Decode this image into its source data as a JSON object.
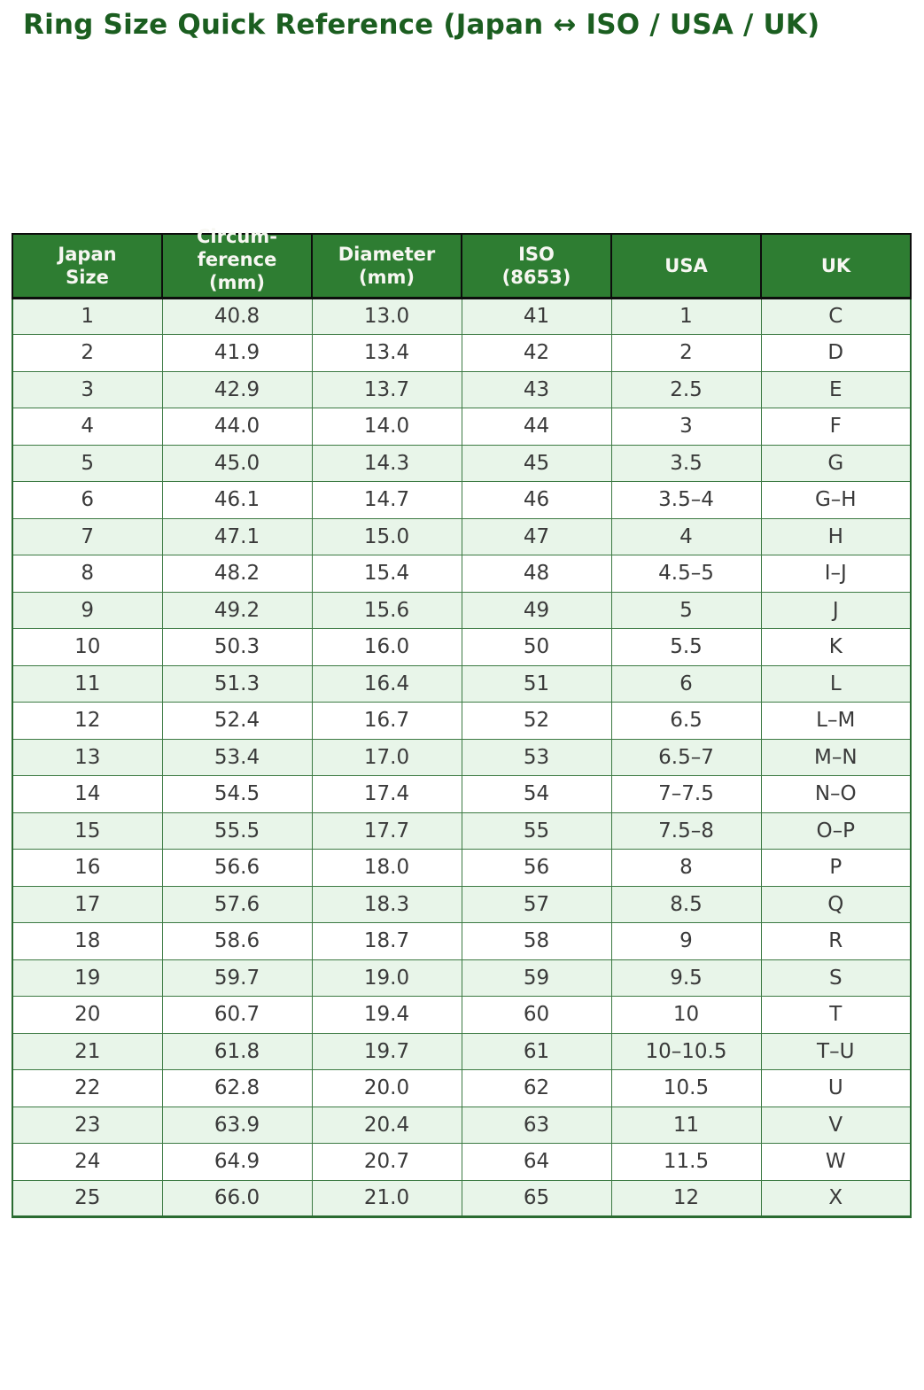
{
  "colors": {
    "title_green": "#1b5e20",
    "header_green": "#2e7d32",
    "stripe_green": "#e8f5e9",
    "body_text": "#3a3a3a",
    "header_text": "#f7f7f2"
  },
  "chart_data": {
    "type": "table",
    "title": "Ring Size Quick Reference (Japan ↔ ISO / USA / UK)",
    "columns": [
      "Japan\nSize",
      "Circum-\nference\n(mm)",
      "Diameter\n(mm)",
      "ISO\n(8653)",
      "USA",
      "UK"
    ],
    "rows": [
      [
        "1",
        "40.8",
        "13.0",
        "41",
        "1",
        "C"
      ],
      [
        "2",
        "41.9",
        "13.4",
        "42",
        "2",
        "D"
      ],
      [
        "3",
        "42.9",
        "13.7",
        "43",
        "2.5",
        "E"
      ],
      [
        "4",
        "44.0",
        "14.0",
        "44",
        "3",
        "F"
      ],
      [
        "5",
        "45.0",
        "14.3",
        "45",
        "3.5",
        "G"
      ],
      [
        "6",
        "46.1",
        "14.7",
        "46",
        "3.5–4",
        "G–H"
      ],
      [
        "7",
        "47.1",
        "15.0",
        "47",
        "4",
        "H"
      ],
      [
        "8",
        "48.2",
        "15.4",
        "48",
        "4.5–5",
        "I–J"
      ],
      [
        "9",
        "49.2",
        "15.6",
        "49",
        "5",
        "J"
      ],
      [
        "10",
        "50.3",
        "16.0",
        "50",
        "5.5",
        "K"
      ],
      [
        "11",
        "51.3",
        "16.4",
        "51",
        "6",
        "L"
      ],
      [
        "12",
        "52.4",
        "16.7",
        "52",
        "6.5",
        "L–M"
      ],
      [
        "13",
        "53.4",
        "17.0",
        "53",
        "6.5–7",
        "M–N"
      ],
      [
        "14",
        "54.5",
        "17.4",
        "54",
        "7–7.5",
        "N–O"
      ],
      [
        "15",
        "55.5",
        "17.7",
        "55",
        "7.5–8",
        "O–P"
      ],
      [
        "16",
        "56.6",
        "18.0",
        "56",
        "8",
        "P"
      ],
      [
        "17",
        "57.6",
        "18.3",
        "57",
        "8.5",
        "Q"
      ],
      [
        "18",
        "58.6",
        "18.7",
        "58",
        "9",
        "R"
      ],
      [
        "19",
        "59.7",
        "19.0",
        "59",
        "9.5",
        "S"
      ],
      [
        "20",
        "60.7",
        "19.4",
        "60",
        "10",
        "T"
      ],
      [
        "21",
        "61.8",
        "19.7",
        "61",
        "10–10.5",
        "T–U"
      ],
      [
        "22",
        "62.8",
        "20.0",
        "62",
        "10.5",
        "U"
      ],
      [
        "23",
        "63.9",
        "20.4",
        "63",
        "11",
        "V"
      ],
      [
        "24",
        "64.9",
        "20.7",
        "64",
        "11.5",
        "W"
      ],
      [
        "25",
        "66.0",
        "21.0",
        "65",
        "12",
        "X"
      ]
    ]
  }
}
